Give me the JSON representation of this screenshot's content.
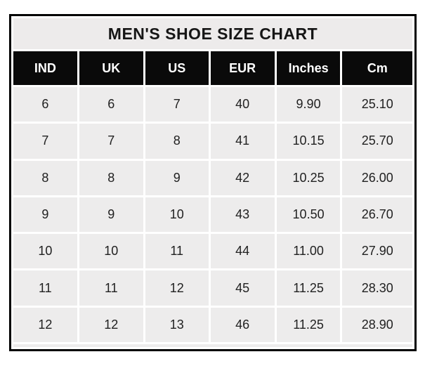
{
  "chart_data": {
    "type": "table",
    "title": "MEN'S SHOE SIZE CHART",
    "columns": [
      "IND",
      "UK",
      "US",
      "EUR",
      "Inches",
      "Cm"
    ],
    "rows": [
      [
        "6",
        "6",
        "7",
        "40",
        "9.90",
        "25.10"
      ],
      [
        "7",
        "7",
        "8",
        "41",
        "10.15",
        "25.70"
      ],
      [
        "8",
        "8",
        "9",
        "42",
        "10.25",
        "26.00"
      ],
      [
        "9",
        "9",
        "10",
        "43",
        "10.50",
        "26.70"
      ],
      [
        "10",
        "10",
        "11",
        "44",
        "11.00",
        "27.90"
      ],
      [
        "11",
        "11",
        "12",
        "45",
        "11.25",
        "28.30"
      ],
      [
        "12",
        "12",
        "13",
        "46",
        "11.25",
        "28.90"
      ]
    ],
    "layout": {
      "legend": "none",
      "grid": "white cell gaps on light-gray cells, black outer border"
    }
  },
  "colors": {
    "outer_border": "#000000",
    "title_bg": "#edebeb",
    "header_bg": "#0a0a0a",
    "header_text": "#ffffff",
    "cell_bg": "#edecec",
    "cell_text": "#212121",
    "grid_gap": "#ffffff",
    "page_bg": "#ffffff"
  }
}
